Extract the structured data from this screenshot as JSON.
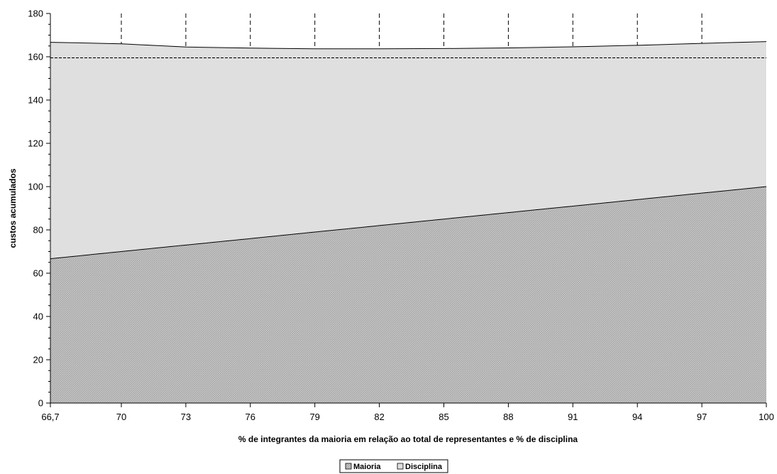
{
  "chart_data": {
    "type": "area",
    "stacked": true,
    "x": [
      66.7,
      70,
      73,
      76,
      79,
      82,
      85,
      88,
      91,
      94,
      97,
      100
    ],
    "x_tick_labels": [
      "66,7",
      "70",
      "73",
      "76",
      "79",
      "82",
      "85",
      "88",
      "91",
      "94",
      "97",
      "100"
    ],
    "series": [
      {
        "name": "Maioria",
        "values": [
          66.7,
          70,
          73,
          76,
          79,
          82,
          85,
          88,
          91,
          94,
          97,
          100
        ],
        "color": "#b4b4b4"
      },
      {
        "name": "Disciplina",
        "values": [
          100,
          96,
          91.5,
          88,
          84.7,
          81.7,
          78.8,
          76.1,
          73.6,
          71.3,
          69.2,
          67
        ],
        "color": "#dcdcdc"
      }
    ],
    "reference_line": {
      "y": 159.5,
      "style": "dashed"
    },
    "ylim": [
      0,
      180
    ],
    "y_ticks": [
      0,
      20,
      40,
      60,
      80,
      100,
      120,
      140,
      160,
      180
    ],
    "xlabel": "% de integrantes da maioria em relação ao total de representantes e % de disciplina",
    "ylabel": "custos acumulados",
    "grid": "vertical dashed lines at x ticks, above the stacked areas",
    "legend_position": "bottom-center"
  }
}
